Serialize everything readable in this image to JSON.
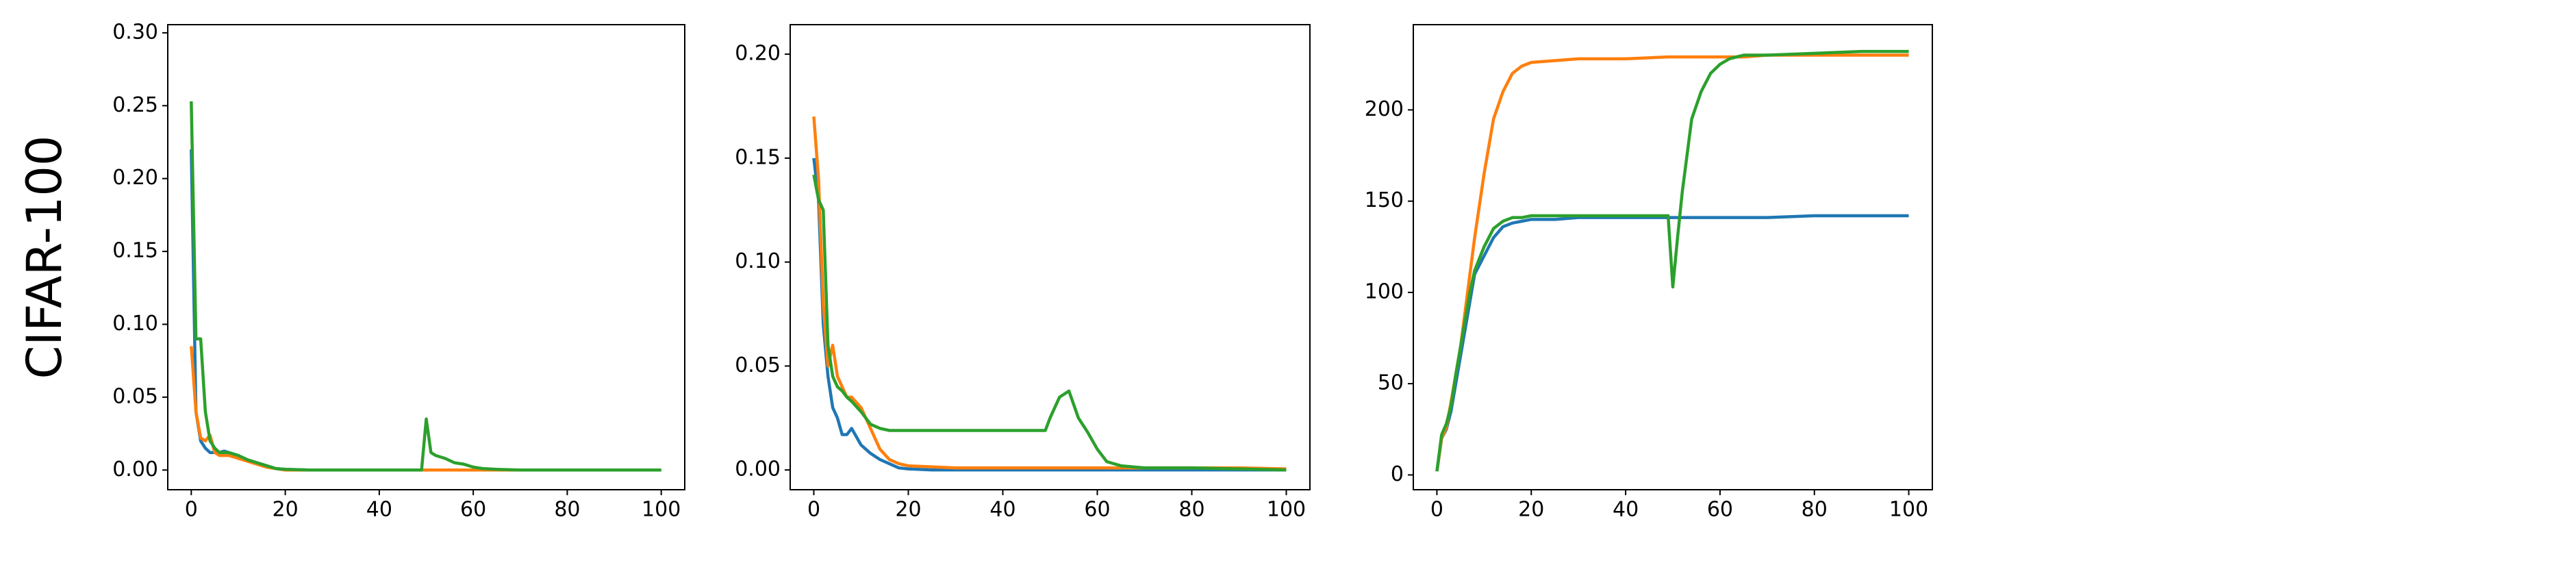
{
  "chart_data": [
    {
      "type": "line",
      "ylabel": "CIFAR-100",
      "x": [
        0,
        1,
        2,
        3,
        4,
        5,
        6,
        7,
        8,
        10,
        12,
        14,
        16,
        18,
        20,
        25,
        30,
        40,
        49,
        50,
        51,
        52,
        54,
        56,
        58,
        60,
        62,
        65,
        70,
        80,
        90,
        100
      ],
      "series": [
        {
          "color": "#1f77b4",
          "values": [
            0.22,
            0.04,
            0.02,
            0.015,
            0.012,
            0.012,
            0.012,
            0.013,
            0.012,
            0.01,
            0.007,
            0.005,
            0.003,
            0.001,
            0.0005,
            0,
            0,
            0,
            0,
            0,
            0,
            0,
            0,
            0,
            0,
            0,
            0,
            0,
            0,
            0,
            0,
            0
          ]
        },
        {
          "color": "#ff7f0e",
          "values": [
            0.085,
            0.04,
            0.022,
            0.02,
            0.024,
            0.012,
            0.01,
            0.01,
            0.01,
            0.008,
            0.006,
            0.004,
            0.002,
            0.001,
            0,
            0,
            0,
            0,
            0,
            0,
            0,
            0,
            0,
            0,
            0,
            0,
            0,
            0,
            0,
            0,
            0,
            0
          ]
        },
        {
          "color": "#2ca02c",
          "values": [
            0.253,
            0.09,
            0.09,
            0.04,
            0.02,
            0.015,
            0.012,
            0.012,
            0.012,
            0.01,
            0.007,
            0.005,
            0.003,
            0.001,
            0.0005,
            0,
            0,
            0,
            0,
            0.035,
            0.012,
            0.01,
            0.008,
            0.005,
            0.004,
            0.002,
            0.001,
            0.0005,
            0,
            0,
            0,
            0
          ]
        }
      ],
      "xlim": [
        -5,
        105
      ],
      "xticks": [
        0,
        20,
        40,
        60,
        80,
        100
      ],
      "ylim": [
        -0.0135,
        0.3056
      ],
      "yticks": [
        {
          "value": 0,
          "label": "0.00"
        },
        {
          "value": 0.05,
          "label": "0.05"
        },
        {
          "value": 0.1,
          "label": "0.10"
        },
        {
          "value": 0.15,
          "label": "0.15"
        },
        {
          "value": 0.2,
          "label": "0.20"
        },
        {
          "value": 0.25,
          "label": "0.25"
        },
        {
          "value": 0.3,
          "label": "0.30"
        }
      ]
    },
    {
      "type": "line",
      "x": [
        0,
        1,
        2,
        3,
        4,
        5,
        6,
        7,
        8,
        10,
        12,
        14,
        16,
        18,
        20,
        25,
        30,
        40,
        49,
        50,
        51,
        52,
        54,
        56,
        58,
        60,
        62,
        65,
        70,
        80,
        90,
        100
      ],
      "series": [
        {
          "color": "#1f77b4",
          "values": [
            0.15,
            0.13,
            0.07,
            0.045,
            0.03,
            0.025,
            0.017,
            0.017,
            0.02,
            0.012,
            0.008,
            0.005,
            0.003,
            0.001,
            0.0005,
            0,
            0,
            0,
            0,
            0,
            0,
            0,
            0,
            0,
            0,
            0,
            0,
            0,
            0,
            0,
            0,
            0
          ]
        },
        {
          "color": "#ff7f0e",
          "values": [
            0.17,
            0.14,
            0.08,
            0.05,
            0.06,
            0.045,
            0.04,
            0.035,
            0.035,
            0.03,
            0.02,
            0.01,
            0.005,
            0.003,
            0.002,
            0.0015,
            0.001,
            0.001,
            0.001,
            0.001,
            0.001,
            0.001,
            0.001,
            0.001,
            0.001,
            0.001,
            0.001,
            0.001,
            0.001,
            0.001,
            0.001,
            0.0005
          ]
        },
        {
          "color": "#2ca02c",
          "values": [
            0.142,
            0.13,
            0.125,
            0.06,
            0.045,
            0.04,
            0.038,
            0.035,
            0.033,
            0.028,
            0.022,
            0.02,
            0.019,
            0.019,
            0.019,
            0.019,
            0.019,
            0.019,
            0.019,
            0.025,
            0.03,
            0.035,
            0.038,
            0.025,
            0.018,
            0.01,
            0.004,
            0.002,
            0.001,
            0.001,
            0.0005,
            0
          ]
        }
      ],
      "xlim": [
        -5,
        105
      ],
      "xticks": [
        0,
        20,
        40,
        60,
        80,
        100
      ],
      "ylim": [
        -0.0095,
        0.2142
      ],
      "yticks": [
        {
          "value": 0,
          "label": "0.00"
        },
        {
          "value": 0.05,
          "label": "0.05"
        },
        {
          "value": 0.1,
          "label": "0.10"
        },
        {
          "value": 0.15,
          "label": "0.15"
        },
        {
          "value": 0.2,
          "label": "0.20"
        }
      ]
    },
    {
      "type": "line",
      "x": [
        0,
        1,
        2,
        3,
        4,
        5,
        6,
        7,
        8,
        10,
        12,
        14,
        16,
        18,
        20,
        25,
        30,
        40,
        49,
        50,
        51,
        52,
        54,
        56,
        58,
        60,
        62,
        65,
        70,
        80,
        90,
        100
      ],
      "series": [
        {
          "color": "#1f77b4",
          "values": [
            2,
            20,
            25,
            35,
            50,
            65,
            80,
            95,
            110,
            120,
            130,
            136,
            138,
            139,
            140,
            140,
            141,
            141,
            141,
            141,
            141,
            141,
            141,
            141,
            141,
            141,
            141,
            141,
            141,
            142,
            142,
            142
          ]
        },
        {
          "color": "#ff7f0e",
          "values": [
            2,
            20,
            26,
            40,
            55,
            70,
            90,
            110,
            130,
            165,
            195,
            210,
            220,
            224,
            226,
            227,
            228,
            228,
            229,
            229,
            229,
            229,
            229,
            229,
            229,
            229,
            229,
            229,
            230,
            230,
            230,
            230
          ]
        },
        {
          "color": "#2ca02c",
          "values": [
            2,
            22,
            28,
            38,
            55,
            70,
            85,
            100,
            112,
            125,
            135,
            139,
            141,
            141,
            142,
            142,
            142,
            142,
            142,
            103,
            130,
            155,
            195,
            210,
            220,
            225,
            228,
            230,
            230,
            231,
            232,
            232
          ]
        }
      ],
      "xlim": [
        -5,
        105
      ],
      "xticks": [
        0,
        20,
        40,
        60,
        80,
        100
      ],
      "ylim": [
        -8.1,
        246.7
      ],
      "yticks": [
        0,
        50,
        100,
        150,
        200
      ]
    }
  ]
}
